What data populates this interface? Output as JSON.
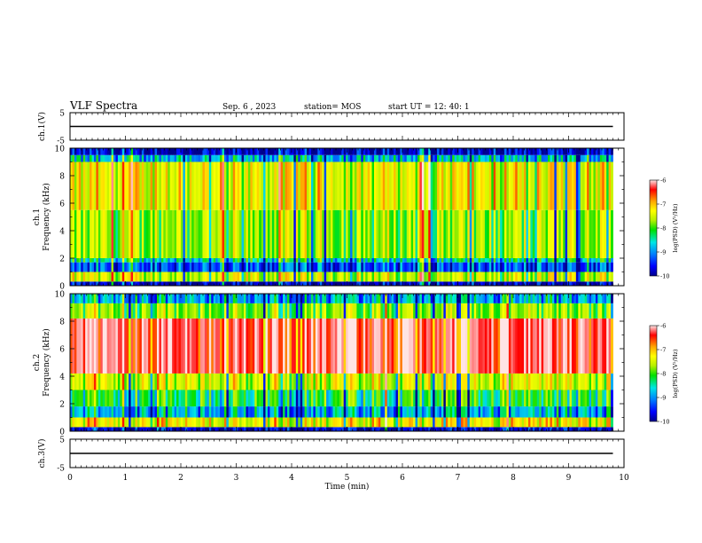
{
  "header": {
    "title": "VLF Spectra",
    "date": "Sep. 6 , 2023",
    "station": "station= MOS",
    "start": "start UT = 12: 40: 1"
  },
  "colors": {
    "spectrum": [
      "#00008c",
      "#0000ff",
      "#0078ff",
      "#00e6e6",
      "#00e000",
      "#b4f000",
      "#ffff00",
      "#ffa500",
      "#ff0000",
      "#ffe6e6"
    ]
  },
  "chart_data": [
    {
      "type": "line",
      "panel": "ch1-waveform",
      "ylabel": "ch.1(V)",
      "ylim": [
        -5,
        5
      ],
      "ytick_labels": [
        "5",
        "-5"
      ],
      "xlim": [
        0,
        10
      ],
      "x": [
        0,
        9.8
      ],
      "y": [
        0,
        0
      ]
    },
    {
      "type": "heatmap",
      "panel": "ch1-spectrogram",
      "ylabel": "ch.1\nFrequency (kHz)",
      "ylim": [
        0,
        10
      ],
      "ytick_labels": [
        "0",
        "2",
        "4",
        "6",
        "8",
        "10"
      ],
      "xlim": [
        0,
        10
      ],
      "data_x_end": 9.8,
      "colorbar": {
        "label": "log(PSD) (V²/Hz)",
        "ticks": [
          "-6",
          "-7",
          "-8",
          "-9",
          "-10"
        ],
        "range": [
          -10,
          -6
        ]
      },
      "bands": [
        {
          "f": [
            0,
            0.3
          ],
          "level": -9.8
        },
        {
          "f": [
            0.3,
            1.0
          ],
          "level": -7.6
        },
        {
          "f": [
            1.0,
            1.7
          ],
          "level": -9.3
        },
        {
          "f": [
            1.7,
            2.0
          ],
          "level": -8.6
        },
        {
          "f": [
            2.0,
            5.5
          ],
          "level": -7.8
        },
        {
          "f": [
            5.5,
            9.0
          ],
          "level": -7.4
        },
        {
          "f": [
            9.0,
            9.5
          ],
          "level": -8.8
        },
        {
          "f": [
            9.5,
            10.0
          ],
          "level": -9.8
        }
      ]
    },
    {
      "type": "heatmap",
      "panel": "ch2-spectrogram",
      "ylabel": "ch.2\nFrequency (kHz)",
      "ylim": [
        0,
        10
      ],
      "ytick_labels": [
        "0",
        "2",
        "4",
        "6",
        "8",
        "10"
      ],
      "xlim": [
        0,
        10
      ],
      "data_x_end": 9.8,
      "colorbar": {
        "label": "log(PSD) (V²/Hz)",
        "ticks": [
          "-6",
          "-7",
          "-8",
          "-9",
          "-10"
        ],
        "range": [
          -10,
          -6
        ]
      },
      "bands": [
        {
          "f": [
            0,
            0.3
          ],
          "level": -9.8
        },
        {
          "f": [
            0.3,
            1.0
          ],
          "level": -7.4
        },
        {
          "f": [
            1.0,
            1.8
          ],
          "level": -8.9
        },
        {
          "f": [
            1.8,
            3.0
          ],
          "level": -8.3
        },
        {
          "f": [
            3.0,
            4.2
          ],
          "level": -7.6
        },
        {
          "f": [
            4.2,
            8.2
          ],
          "level": -6.3
        },
        {
          "f": [
            8.2,
            9.3
          ],
          "level": -7.9
        },
        {
          "f": [
            9.3,
            10.0
          ],
          "level": -8.9
        }
      ]
    },
    {
      "type": "line",
      "panel": "ch3-waveform",
      "ylabel": "ch.3(V)",
      "ylim": [
        -5,
        5
      ],
      "ytick_labels": [
        "5",
        "-5"
      ],
      "xlim": [
        0,
        10
      ],
      "xlabel": "Time (min)",
      "xtick_labels": [
        "0",
        "1",
        "2",
        "3",
        "4",
        "5",
        "6",
        "7",
        "8",
        "9",
        "10"
      ],
      "x": [
        0,
        9.8
      ],
      "y": [
        0,
        0
      ]
    }
  ]
}
